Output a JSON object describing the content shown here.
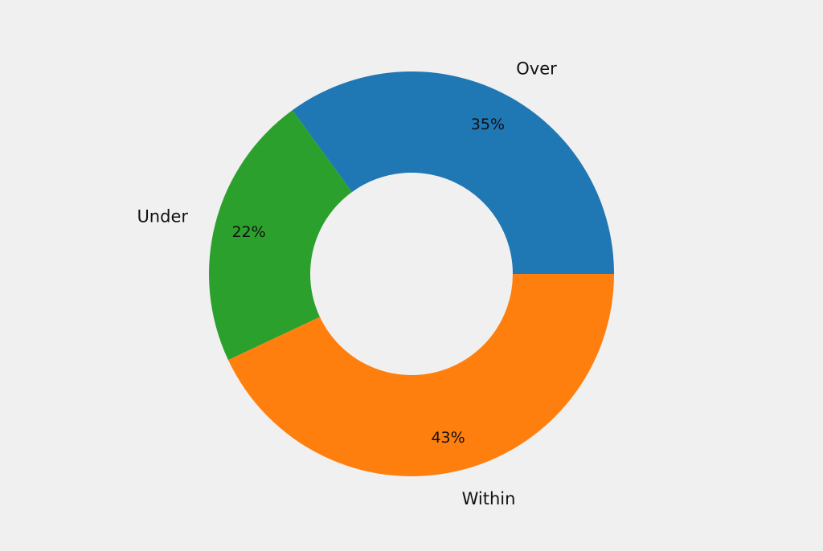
{
  "chart_data": {
    "type": "pie",
    "donut": true,
    "slices": [
      {
        "label": "Over",
        "value": 35,
        "value_label": "35%",
        "color": "#1f77b4"
      },
      {
        "label": "Under",
        "value": 22,
        "value_label": "22%",
        "color": "#2ca02c"
      },
      {
        "label": "Within",
        "value": 43,
        "value_label": "43%",
        "color": "#ff7f0e"
      }
    ],
    "start_angle_deg": 0,
    "direction": "counterclockwise",
    "legend": "none"
  },
  "background_color": "#f0f0f0"
}
